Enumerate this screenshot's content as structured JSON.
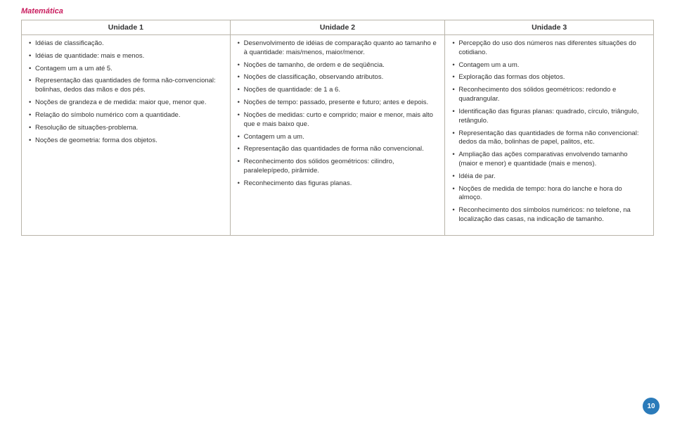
{
  "title": "Matemática",
  "headers": {
    "u1": "Unidade 1",
    "u2": "Unidade 2",
    "u3": "Unidade 3"
  },
  "page": "10",
  "u1": [
    "Idéias de classificação.",
    "Idéias de quantidade: mais e menos.",
    "Contagem um a um até 5.",
    "Representação das quantidades de forma não-convencional: bolinhas, dedos das mãos e dos pés.",
    "Noções de grandeza e de medida: maior que, menor que.",
    "Relação do símbolo numérico com a quantidade.",
    "Resolução de situações-problema.",
    "Noções de geometria: forma dos objetos."
  ],
  "u2": [
    "Desenvolvimento de idéias de comparação quanto ao tamanho e à quantidade: mais/menos, maior/menor.",
    "Noções de tamanho, de ordem e de seqüência.",
    "Noções de classificação, observando atributos.",
    "Noções de quantidade: de 1 a 6.",
    "Noções de tempo: passado, presente e futuro; antes e depois.",
    "Noções de medidas: curto e comprido; maior e menor, mais alto que e mais baixo que.",
    "Contagem um a um.",
    "Representação das quantidades de forma não convencional.",
    "Reconhecimento dos sólidos geométricos: cilindro, paralelepípedo, pirâmide.",
    "Reconhecimento das figuras planas."
  ],
  "u3": [
    "Percepção do uso dos números nas diferentes situações do cotidiano.",
    "Contagem um a um.",
    "Exploração das formas dos objetos.",
    "Reconhecimento dos sólidos geométricos: redondo e quadrangular.",
    "Identificação das figuras planas: quadrado, círculo, triângulo, retângulo.",
    "Representação das quantidades de forma não convencional: dedos da mão, bolinhas de papel, palitos, etc.",
    "Ampliação das ações comparativas envolvendo tamanho (maior e menor) e quantidade (mais e menos).",
    "Idéia de par.",
    "Noções de medida de tempo: hora do lanche e hora do almoço.",
    "Reconhecimento dos símbolos numéricos: no telefone, na localização das casas, na indicação de tamanho."
  ]
}
